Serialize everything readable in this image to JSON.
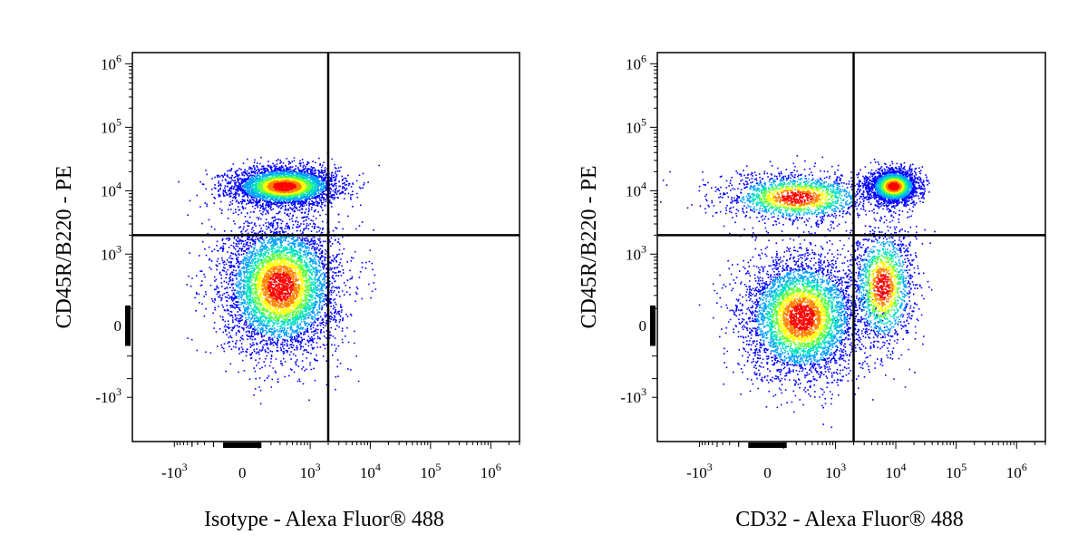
{
  "chart_data": [
    {
      "type": "scatter",
      "panel": "isotype",
      "xlabel": "Isotype - Alexa Fluor® 488",
      "ylabel": "CD45R/B220 - PE",
      "x_scale": "biexponential",
      "y_scale": "biexponential",
      "xlim": [
        -5000,
        3000000
      ],
      "ylim": [
        -5000,
        1500000
      ],
      "x_ticks": [
        "-10^3",
        "0",
        "10^3",
        "10^4",
        "10^5",
        "10^6"
      ],
      "y_ticks": [
        "10^6",
        "10^5",
        "10^4",
        "10^3",
        "0",
        "-10^3"
      ],
      "quadrant_gate": {
        "x": 2000,
        "y": 2000
      },
      "colormap": [
        "#0000ff",
        "#00a0ff",
        "#00e0c0",
        "#60ff40",
        "#ffff00",
        "#ff8000",
        "#ff0000"
      ],
      "populations": [
        {
          "label": "upper",
          "x_center": 350,
          "y_center": 12000,
          "x_spread": 1.0,
          "y_spread": 0.35,
          "count": 3800
        },
        {
          "label": "lower",
          "x_center": 300,
          "y_center": 300,
          "x_spread": 1.1,
          "y_spread": 1.2,
          "count": 5200
        }
      ]
    },
    {
      "type": "scatter",
      "panel": "cd32",
      "xlabel": "CD32 - Alexa Fluor® 488",
      "ylabel": "CD45R/B220 - PE",
      "x_scale": "biexponential",
      "y_scale": "biexponential",
      "xlim": [
        -5000,
        3000000
      ],
      "ylim": [
        -5000,
        1500000
      ],
      "x_ticks": [
        "-10^3",
        "0",
        "10^3",
        "10^4",
        "10^5",
        "10^6"
      ],
      "y_ticks": [
        "10^6",
        "10^5",
        "10^4",
        "10^3",
        "0",
        "-10^3"
      ],
      "quadrant_gate": {
        "x": 2000,
        "y": 2000
      },
      "colormap": [
        "#0000ff",
        "#00a0ff",
        "#00e0c0",
        "#60ff40",
        "#ffff00",
        "#ff8000",
        "#ff0000"
      ],
      "populations": [
        {
          "label": "upper-right",
          "x_center": 9000,
          "y_center": 12000,
          "x_spread": 0.45,
          "y_spread": 0.3,
          "count": 2600
        },
        {
          "label": "upper-left",
          "x_center": 200,
          "y_center": 8000,
          "x_spread": 1.4,
          "y_spread": 0.45,
          "count": 1800
        },
        {
          "label": "lower-left",
          "x_center": 250,
          "y_center": 50,
          "x_spread": 1.1,
          "y_spread": 1.1,
          "count": 4600
        },
        {
          "label": "lower-right",
          "x_center": 6000,
          "y_center": 300,
          "x_spread": 0.6,
          "y_spread": 1.1,
          "count": 1600
        }
      ]
    }
  ]
}
